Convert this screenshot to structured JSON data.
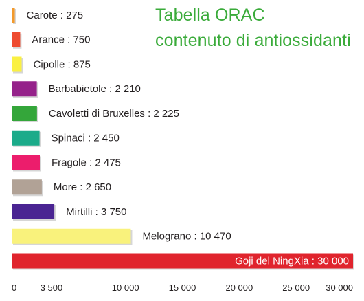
{
  "chart_data": {
    "type": "bar",
    "orientation": "horizontal",
    "title": [
      "Tabella ORAC",
      "contenuto di antiossidanti"
    ],
    "categories": [
      "Carote",
      "Arance",
      "Cipolle",
      "Barbabietole",
      "Cavoletti di Bruxelles",
      "Spinaci",
      "Fragole",
      "More",
      "Mirtilli",
      "Melograno",
      "Goji del NingXia"
    ],
    "values": [
      275,
      750,
      875,
      2210,
      2225,
      2450,
      2475,
      2650,
      3750,
      10470,
      30000
    ],
    "labels": [
      "Carote : 275",
      "Arance : 750",
      "Cipolle : 875",
      "Barbabietole : 2 210",
      "Cavoletti di Bruxelles : 2 225",
      "Spinaci : 2 450",
      "Fragole : 2 475",
      "More : 2 650",
      "Mirtilli : 3 750",
      "Melograno : 10 470",
      "Goji del NingXia : 30 000"
    ],
    "label_inside": [
      false,
      false,
      false,
      false,
      false,
      false,
      false,
      false,
      false,
      false,
      true
    ],
    "colors": [
      "#f39a2c",
      "#ee4b30",
      "#faf043",
      "#95228a",
      "#34a63a",
      "#1bab8a",
      "#ec1d6c",
      "#b1a296",
      "#4a2492",
      "#f9f27c",
      "#e0242d"
    ],
    "x_ticks": [
      0,
      3500,
      10000,
      15000,
      20000,
      25000,
      30000
    ],
    "x_tick_labels": [
      "0",
      "3 500",
      "10 000",
      "15 000",
      "20 000",
      "25 000",
      "30 000"
    ],
    "xlim": [
      0,
      30000
    ],
    "grid": false,
    "legend": "none"
  }
}
